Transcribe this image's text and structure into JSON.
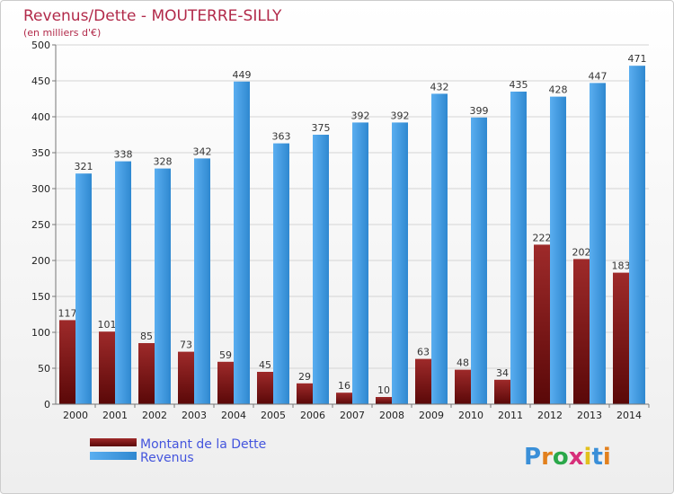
{
  "chart_data": {
    "type": "bar",
    "title": "Revenus/Dette - MOUTERRE-SILLY",
    "subtitle": "(en milliers d'€)",
    "categories": [
      "2000",
      "2001",
      "2002",
      "2003",
      "2004",
      "2005",
      "2006",
      "2007",
      "2008",
      "2009",
      "2010",
      "2011",
      "2012",
      "2013",
      "2014"
    ],
    "series": [
      {
        "name": "Montant de la Dette",
        "color": "#8b1a1a",
        "values": [
          117,
          101,
          85,
          73,
          59,
          45,
          29,
          16,
          10,
          63,
          48,
          34,
          222,
          202,
          183
        ]
      },
      {
        "name": "Revenus",
        "color": "#3f9be0",
        "values": [
          321,
          338,
          328,
          342,
          449,
          363,
          375,
          392,
          392,
          432,
          399,
          435,
          428,
          447,
          471
        ]
      }
    ],
    "yticks": [
      0,
      50,
      100,
      150,
      200,
      250,
      300,
      350,
      400,
      450,
      500
    ],
    "ylim": [
      0,
      500
    ],
    "grid": true,
    "legend_position": "bottom-left"
  },
  "brand": {
    "text": "Proxiti"
  }
}
